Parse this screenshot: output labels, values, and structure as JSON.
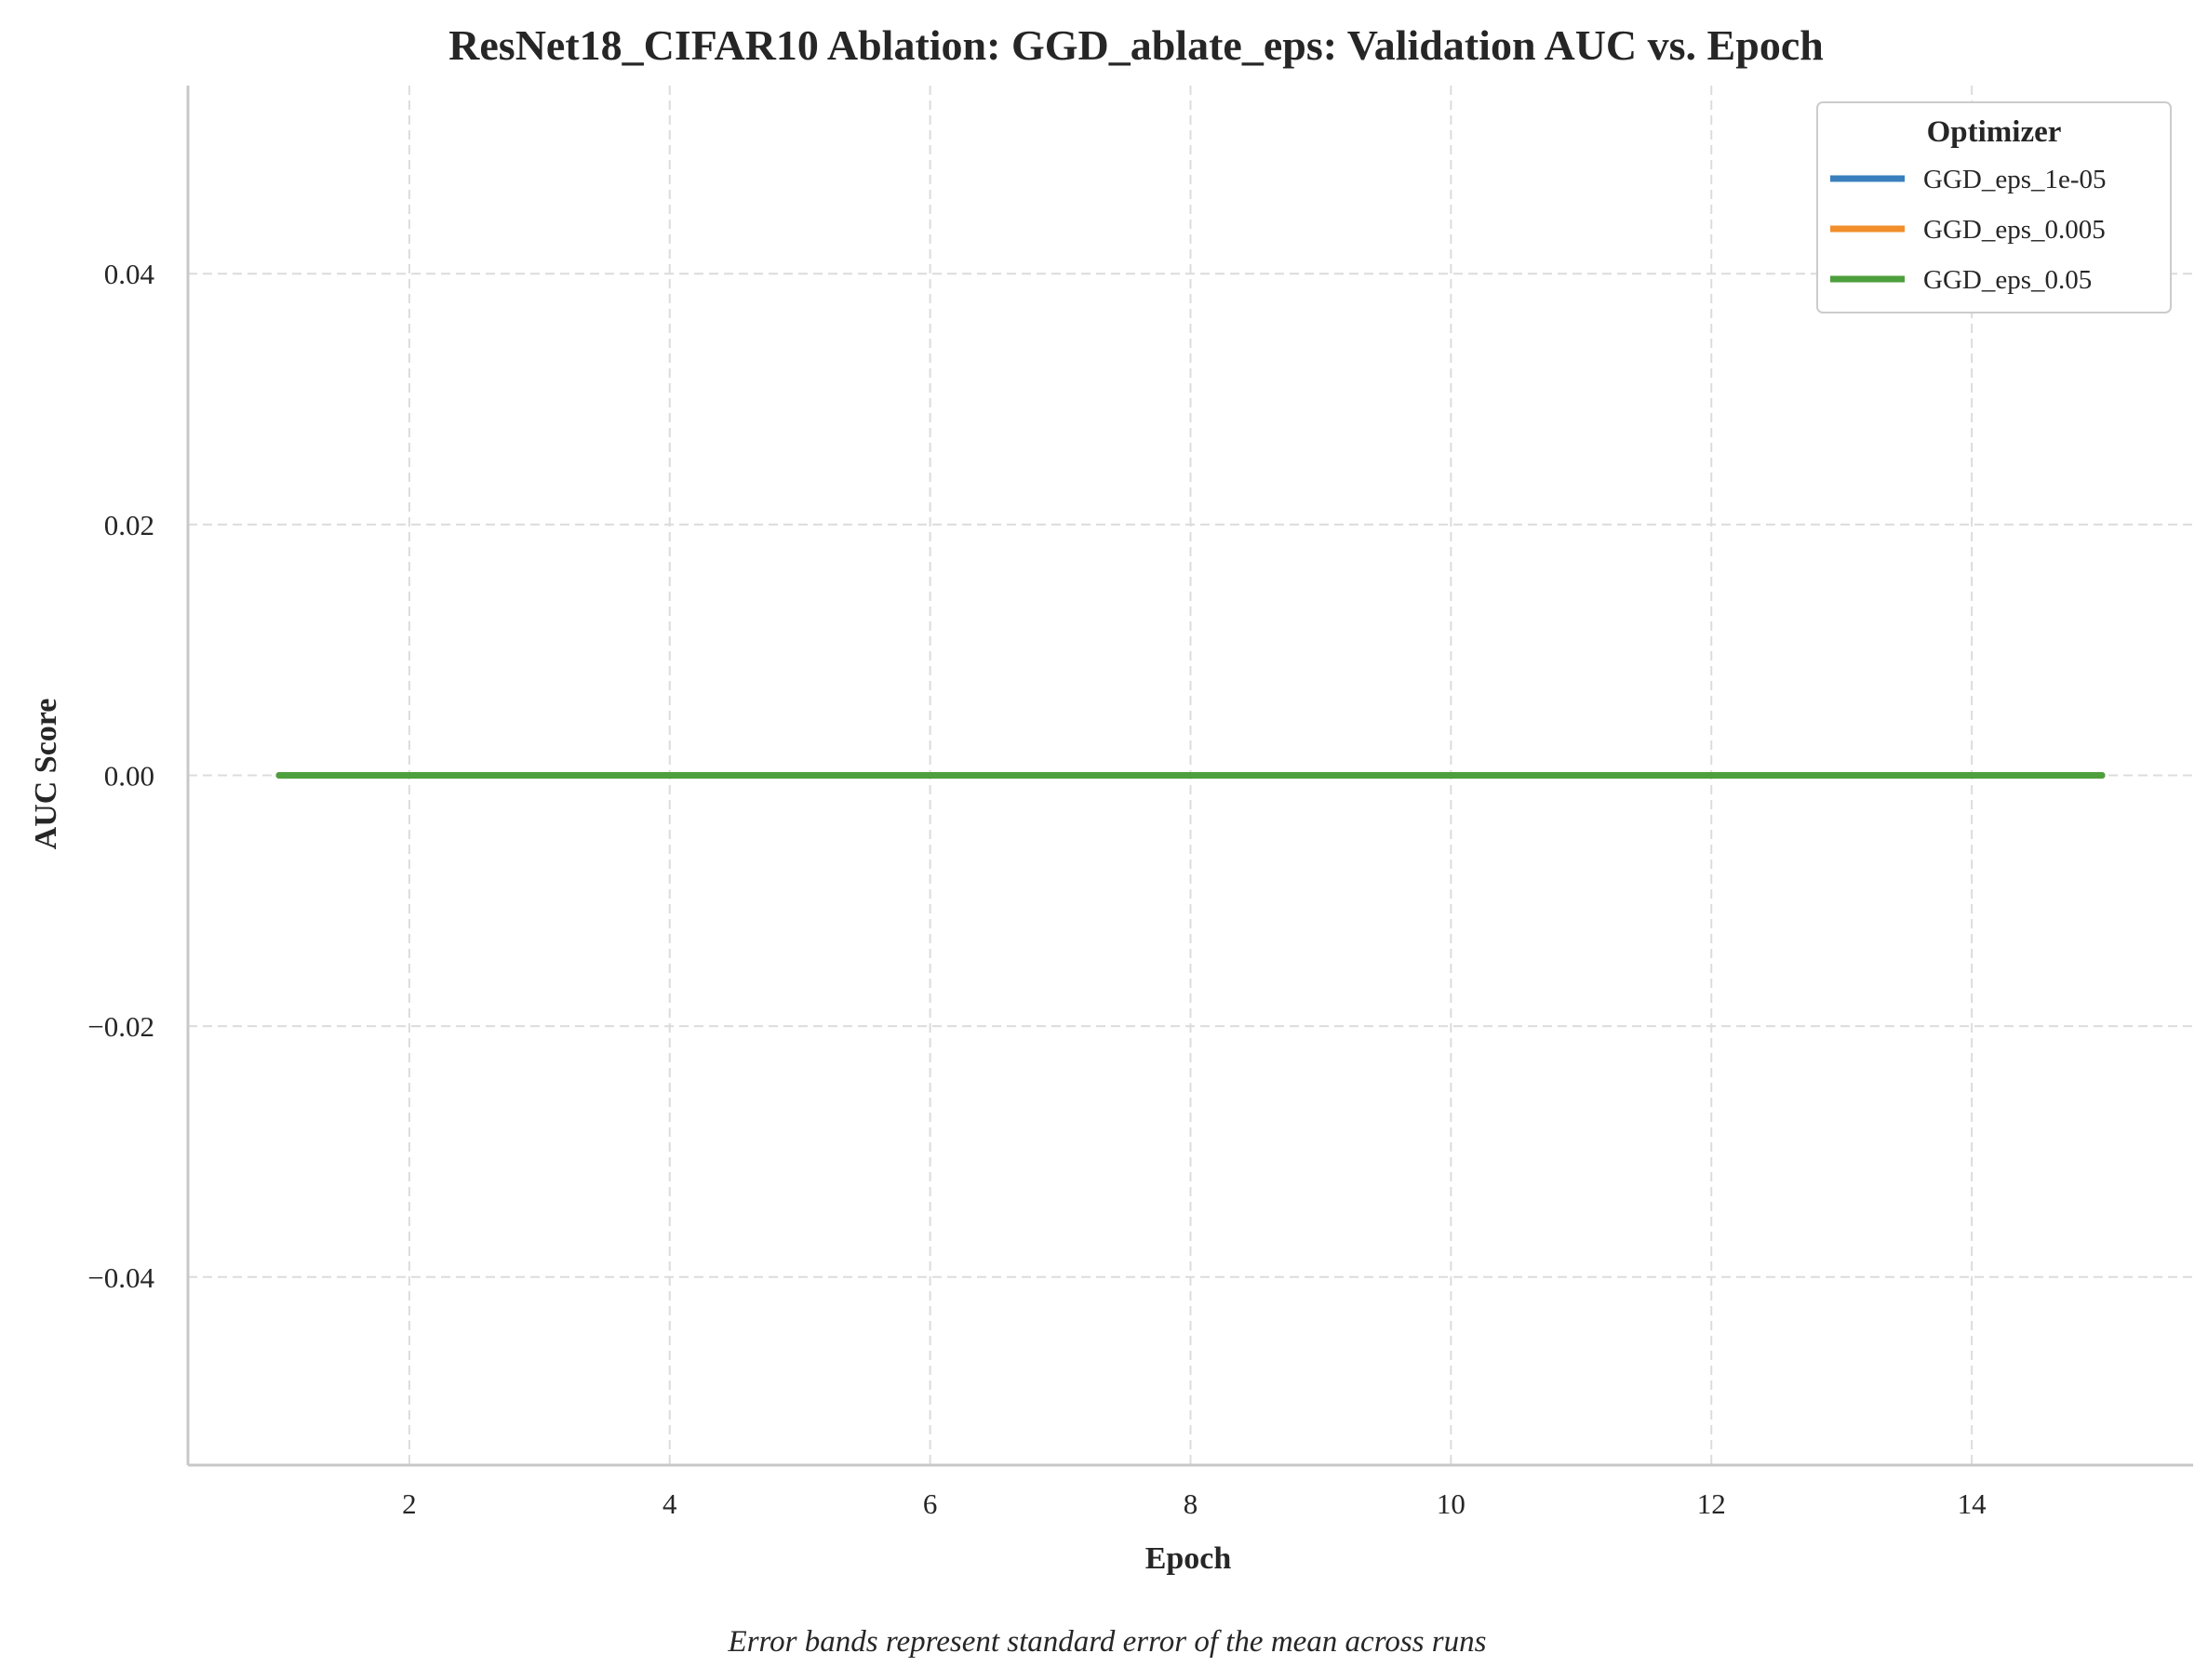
{
  "chart_data": {
    "type": "line",
    "title": "ResNet18_CIFAR10 Ablation: GGD_ablate_eps: Validation AUC vs. Epoch",
    "xlabel": "Epoch",
    "ylabel": "AUC Score",
    "caption": "Error bands represent standard error of the mean across runs",
    "xlim": [
      0.3,
      15.7
    ],
    "ylim": [
      -0.055,
      0.055
    ],
    "xticks": [
      2,
      4,
      6,
      8,
      10,
      12,
      14
    ],
    "yticks": [
      -0.04,
      -0.02,
      0.0,
      0.02,
      0.04
    ],
    "ytick_labels": [
      "−0.04",
      "−0.02",
      "0.00",
      "0.02",
      "0.04"
    ],
    "grid": true,
    "legend": {
      "title": "Optimizer",
      "position": "top-right"
    },
    "x": [
      1,
      2,
      3,
      4,
      5,
      6,
      7,
      8,
      9,
      10,
      11,
      12,
      13,
      14,
      15
    ],
    "series": [
      {
        "name": "GGD_eps_1e-05",
        "color": "#3a7fbd",
        "values": [
          0,
          0,
          0,
          0,
          0,
          0,
          0,
          0,
          0,
          0,
          0,
          0,
          0,
          0,
          0
        ]
      },
      {
        "name": "GGD_eps_0.005",
        "color": "#f28e2b",
        "values": [
          0,
          0,
          0,
          0,
          0,
          0,
          0,
          0,
          0,
          0,
          0,
          0,
          0,
          0,
          0
        ]
      },
      {
        "name": "GGD_eps_0.05",
        "color": "#4e9f3d",
        "values": [
          0,
          0,
          0,
          0,
          0,
          0,
          0,
          0,
          0,
          0,
          0,
          0,
          0,
          0,
          0
        ]
      }
    ]
  }
}
